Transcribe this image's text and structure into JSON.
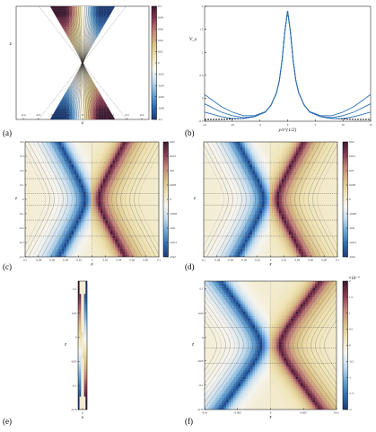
{
  "colors": {
    "colormap": [
      "#1c3a78",
      "#2f6db1",
      "#6aa6d6",
      "#c3dcef",
      "#f6f4ee",
      "#efe3b3",
      "#d8be84",
      "#c5857a",
      "#8a3a52",
      "#3d1830"
    ],
    "line_blue": "#2e6fb4",
    "line_black": "#000000",
    "contour": "#444444"
  },
  "chart_data": [
    {
      "panel_label": "(a)",
      "type": "heatmap",
      "xlabel": "x",
      "ylabel": "z",
      "xticks": [
        "-0.4",
        "-0.3",
        "-0.2",
        "-0.1",
        "0",
        "0.1",
        "0.2",
        "0.3",
        "0.4"
      ],
      "yticks": [],
      "colorbar_ticks": [
        "0.1",
        "0.08",
        "0.06",
        "0.04",
        "0.02",
        "0",
        "-0.02",
        "-0.04",
        "-0.06",
        "-0.08",
        "-0.1"
      ],
      "xlim": [
        -0.45,
        0.45
      ],
      "clim": [
        -0.1,
        0.1
      ]
    },
    {
      "panel_label": "(b)",
      "type": "line",
      "xlabel": "y/ε^{1/2}",
      "ylabel": "V_s",
      "xlim": [
        -15,
        15
      ],
      "ylim": [
        -0.5,
        2.0
      ],
      "xticks": [
        "-15",
        "-10",
        "-5",
        "0",
        "5",
        "10",
        "15"
      ],
      "yticks": [
        "2",
        "1.5",
        "1",
        "0.5",
        "0",
        "-0.5"
      ],
      "x": [
        -15,
        -12,
        -10,
        -8,
        -6,
        -4,
        -3,
        -2,
        -1.5,
        -1,
        -0.5,
        0,
        0.5,
        1,
        1.5,
        2,
        3,
        4,
        6,
        8,
        10,
        12,
        15
      ],
      "series": [
        {
          "values": [
            -0.46,
            -0.46,
            -0.45,
            -0.44,
            -0.4,
            -0.3,
            -0.15,
            0.12,
            0.38,
            0.82,
            1.45,
            1.9,
            1.45,
            0.82,
            0.38,
            0.12,
            -0.15,
            -0.3,
            -0.4,
            -0.44,
            -0.45,
            -0.46,
            -0.46
          ]
        },
        {
          "values": [
            -0.3,
            -0.4,
            -0.44,
            -0.44,
            -0.4,
            -0.3,
            -0.15,
            0.12,
            0.38,
            0.82,
            1.45,
            1.9,
            1.45,
            0.82,
            0.38,
            0.12,
            -0.15,
            -0.3,
            -0.4,
            -0.44,
            -0.44,
            -0.4,
            -0.3
          ]
        },
        {
          "values": [
            -0.12,
            -0.3,
            -0.38,
            -0.42,
            -0.4,
            -0.3,
            -0.15,
            0.12,
            0.38,
            0.82,
            1.45,
            1.9,
            1.45,
            0.82,
            0.38,
            0.12,
            -0.15,
            -0.3,
            -0.4,
            -0.42,
            -0.38,
            -0.3,
            -0.12
          ]
        },
        {
          "values": [
            0.08,
            -0.18,
            -0.3,
            -0.38,
            -0.38,
            -0.29,
            -0.15,
            0.12,
            0.38,
            0.82,
            1.45,
            1.9,
            1.45,
            0.82,
            0.38,
            0.12,
            -0.15,
            -0.29,
            -0.38,
            -0.38,
            -0.3,
            -0.18,
            0.08
          ]
        }
      ]
    },
    {
      "panel_label": "(c)",
      "type": "heatmap",
      "xlabel": "x",
      "ylabel": "z",
      "xticks": [
        "-0.1",
        "-0.08",
        "-0.06",
        "-0.04",
        "-0.02",
        "0",
        "0.02",
        "0.04",
        "0.06",
        "0.08",
        "0.1"
      ],
      "yticks": [
        "0.4",
        "0.3",
        "0.2",
        "0.1",
        "0",
        "-0.1",
        "-0.2",
        "-0.3",
        "-0.4"
      ],
      "colorbar_ticks": [
        "0.02",
        "0.015",
        "0.01",
        "0.005",
        "0",
        "-0.005",
        "-0.01",
        "-0.015",
        "-0.02"
      ],
      "xlim": [
        -0.1,
        0.1
      ],
      "ylim": [
        -0.4,
        0.4
      ],
      "clim": [
        -0.02,
        0.02
      ]
    },
    {
      "panel_label": "(d)",
      "type": "heatmap",
      "xlabel": "x",
      "ylabel": "z",
      "xticks": [
        "-0.1",
        "-0.08",
        "-0.06",
        "-0.04",
        "-0.02",
        "0",
        "0.02",
        "0.04",
        "0.06",
        "0.08",
        "0.1"
      ],
      "yticks": [],
      "colorbar_ticks": [
        "0.02",
        "0.015",
        "0.01",
        "0.005",
        "0",
        "-0.005",
        "-0.01",
        "-0.015",
        "-0.02"
      ],
      "xlim": [
        -0.1,
        0.1
      ],
      "ylim": [
        -0.4,
        0.4
      ],
      "clim": [
        -0.02,
        0.02
      ]
    },
    {
      "panel_label": "(e)",
      "type": "heatmap",
      "xlabel": "x",
      "ylabel": "z",
      "xticks": [
        "0"
      ],
      "yticks": [
        "0.1",
        "0.05",
        "0",
        "-0.05",
        "-0.1",
        "-0.15"
      ],
      "ylim": [
        -0.15,
        0.15
      ]
    },
    {
      "panel_label": "(f)",
      "type": "heatmap",
      "xlabel": "x",
      "ylabel": "z",
      "xticks": [
        "-0.01",
        "-0.005",
        "0",
        "0.005",
        "0.01"
      ],
      "yticks": [
        "0.1",
        "0.05",
        "0",
        "-0.05",
        "-0.1",
        "-0.15"
      ],
      "colorbar_ticks": [
        "2",
        "1.5",
        "1",
        "0.5",
        "0",
        "-0.5",
        "-1",
        "-1.5",
        "-2"
      ],
      "colorbar_exponent": "×10⁻³",
      "xlim": [
        -0.01,
        0.01
      ],
      "ylim": [
        -0.15,
        0.15
      ],
      "clim": [
        -0.002,
        0.002
      ]
    }
  ]
}
